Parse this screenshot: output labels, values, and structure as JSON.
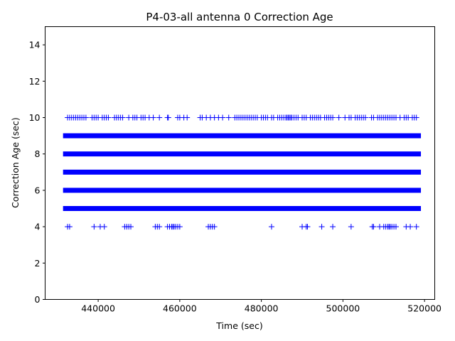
{
  "chart_data": {
    "type": "scatter",
    "title": "P4-03-all antenna 0 Correction Age",
    "xlabel": "Time (sec)",
    "ylabel": "Correction Age (sec)",
    "xlim": [
      427000,
      522500
    ],
    "ylim": [
      0,
      15
    ],
    "xticks": [
      440000,
      460000,
      480000,
      500000,
      520000
    ],
    "xtick_labels": [
      "440000",
      "460000",
      "480000",
      "500000",
      "520000"
    ],
    "yticks": [
      0,
      2,
      4,
      6,
      8,
      10,
      12,
      14
    ],
    "ytick_labels": [
      "0",
      "2",
      "4",
      "6",
      "8",
      "10",
      "12",
      "14"
    ],
    "grid": false,
    "marker": "+",
    "color": "#0000ff",
    "series": [
      {
        "bands": [
          {
            "y": 5,
            "x_range": [
              432000,
              518500
            ],
            "dense": true
          },
          {
            "y": 6,
            "x_range": [
              432000,
              518500
            ],
            "dense": true
          },
          {
            "y": 7,
            "x_range": [
              432000,
              518500
            ],
            "dense": true
          },
          {
            "y": 8,
            "x_range": [
              432000,
              518500
            ],
            "dense": true
          },
          {
            "y": 9,
            "x_range": [
              432000,
              518500
            ],
            "dense": true
          }
        ],
        "points": [
          {
            "y": 10,
            "x": [
              432500,
              433000,
              433500,
              434000,
              434500,
              435000,
              435500,
              436000,
              436500,
              437000,
              438500,
              439000,
              439500,
              440000,
              441000,
              441500,
              442000,
              442500,
              444000,
              444500,
              445000,
              445500,
              446000,
              447500,
              448500,
              449000,
              449500,
              450500,
              451000,
              451500,
              452500,
              453500,
              455000,
              457000,
              457200,
              459500,
              460000,
              461000,
              461800,
              465000,
              465500,
              466500,
              467500,
              468500,
              469500,
              470500,
              472000,
              473500,
              474000,
              474500,
              475000,
              475500,
              476000,
              476500,
              477000,
              477500,
              478000,
              478500,
              479000,
              480000,
              480500,
              481000,
              481500,
              482500,
              483000,
              484000,
              484500,
              485000,
              485500,
              486000,
              486300,
              486600,
              486900,
              487200,
              487500,
              488000,
              488500,
              489000,
              490000,
              490500,
              491000,
              492000,
              492500,
              493000,
              493500,
              494000,
              494500,
              495500,
              496000,
              496500,
              497000,
              497500,
              499000,
              500500,
              501500,
              502000,
              503000,
              503500,
              504000,
              504500,
              505000,
              505500,
              507000,
              507500,
              508500,
              509000,
              509500,
              510000,
              510500,
              511000,
              511500,
              512000,
              512500,
              513000,
              514000,
              515000,
              515500,
              516000,
              517000,
              517500,
              518000
            ]
          },
          {
            "y": 4,
            "x": [
              432500,
              433000,
              439000,
              440500,
              441500,
              446500,
              447000,
              447500,
              448000,
              454000,
              454500,
              455000,
              457000,
              457500,
              458000,
              458300,
              458600,
              459000,
              459500,
              460000,
              467000,
              467500,
              468000,
              468500,
              482500,
              490000,
              491000,
              491300,
              494800,
              497500,
              502000,
              507200,
              507500,
              509000,
              510000,
              510500,
              511000,
              511300,
              511600,
              512000,
              512500,
              513000,
              515500,
              516500,
              518000
            ]
          }
        ]
      }
    ]
  }
}
